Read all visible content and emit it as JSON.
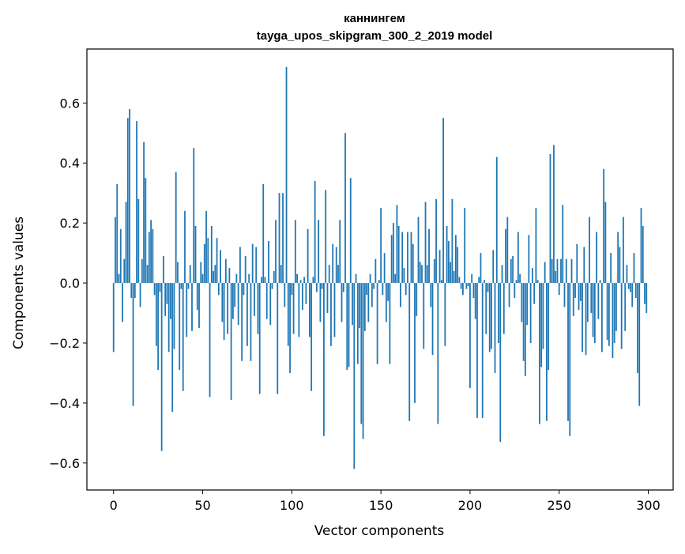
{
  "chart_data": {
    "type": "bar",
    "title": "каннингем",
    "subtitle": "tayga_upos_skipgram_300_2_2019 model",
    "xlabel": "Vector components",
    "ylabel": "Components values",
    "xlim": [
      -14.95,
      313.95
    ],
    "ylim": [
      -0.69,
      0.78
    ],
    "xticks": [
      0,
      50,
      100,
      150,
      200,
      250,
      300
    ],
    "xtick_labels": [
      "0",
      "50",
      "100",
      "150",
      "200",
      "250",
      "300"
    ],
    "yticks": [
      -0.6,
      -0.4,
      -0.2,
      0.0,
      0.2,
      0.4,
      0.6
    ],
    "ytick_labels": [
      "−0.6",
      "−0.4",
      "−0.2",
      "0.0",
      "0.2",
      "0.4",
      "0.6"
    ],
    "grid": false,
    "bar_color": "#1f77b4",
    "values": [
      -0.23,
      0.22,
      0.33,
      0.03,
      0.18,
      -0.13,
      0.08,
      0.27,
      0.55,
      0.58,
      -0.05,
      -0.41,
      -0.05,
      0.54,
      0.28,
      -0.08,
      0.08,
      0.47,
      0.35,
      0.06,
      0.17,
      0.21,
      0.18,
      -0.04,
      -0.21,
      -0.29,
      -0.03,
      -0.56,
      0.09,
      -0.11,
      -0.07,
      -0.23,
      -0.12,
      -0.43,
      -0.22,
      0.37,
      0.07,
      -0.29,
      -0.02,
      -0.36,
      0.24,
      -0.18,
      -0.02,
      0.06,
      -0.16,
      0.45,
      0.19,
      -0.09,
      -0.15,
      0.07,
      0.03,
      0.13,
      0.24,
      0.15,
      -0.38,
      0.19,
      0.04,
      0.06,
      0.15,
      -0.04,
      0.11,
      -0.13,
      -0.19,
      0.08,
      -0.17,
      0.05,
      -0.39,
      -0.12,
      -0.08,
      0.03,
      -0.14,
      0.12,
      -0.26,
      -0.04,
      0.09,
      -0.21,
      0.03,
      -0.26,
      0.13,
      -0.11,
      0.12,
      -0.17,
      -0.37,
      0.02,
      0.33,
      0.02,
      -0.12,
      0.14,
      -0.14,
      -0.02,
      0.04,
      0.21,
      -0.37,
      0.3,
      0.06,
      0.3,
      -0.08,
      0.72,
      -0.21,
      -0.3,
      -0.04,
      -0.17,
      0.21,
      0.03,
      -0.18,
      0.01,
      -0.09,
      0.02,
      -0.07,
      0.18,
      -0.18,
      -0.36,
      0.02,
      0.34,
      -0.03,
      0.21,
      -0.13,
      -0.02,
      -0.51,
      0.31,
      -0.1,
      0.06,
      -0.21,
      0.13,
      -0.18,
      0.12,
      0.06,
      0.21,
      -0.13,
      -0.03,
      0.5,
      -0.29,
      -0.28,
      0.35,
      -0.14,
      -0.62,
      0.03,
      -0.27,
      -0.15,
      -0.47,
      -0.52,
      -0.16,
      -0.04,
      -0.13,
      0.03,
      -0.08,
      -0.02,
      0.08,
      -0.27,
      0.01,
      0.25,
      -0.04,
      0.1,
      -0.13,
      -0.06,
      -0.27,
      0.16,
      0.2,
      0.03,
      0.26,
      0.19,
      -0.08,
      0.17,
      0.05,
      -0.04,
      0.17,
      -0.46,
      0.17,
      0.13,
      -0.4,
      -0.11,
      0.22,
      0.07,
      0.06,
      -0.22,
      0.27,
      0.06,
      0.18,
      -0.08,
      -0.24,
      0.08,
      0.28,
      -0.47,
      0.11,
      0.01,
      0.55,
      -0.21,
      0.19,
      0.14,
      0.07,
      0.28,
      0.04,
      0.16,
      0.12,
      0.02,
      -0.02,
      -0.04,
      0.25,
      -0.02,
      -0.01,
      -0.35,
      0.03,
      -0.05,
      -0.12,
      -0.45,
      0.02,
      0.1,
      -0.45,
      0.01,
      -0.17,
      -0.03,
      -0.23,
      -0.22,
      0.11,
      -0.3,
      0.42,
      -0.2,
      -0.53,
      0.06,
      -0.17,
      0.18,
      0.22,
      -0.08,
      0.08,
      0.09,
      -0.05,
      0.01,
      0.17,
      0.03,
      -0.13,
      -0.26,
      -0.31,
      -0.14,
      0.16,
      -0.2,
      0.05,
      -0.07,
      0.25,
      0.01,
      -0.47,
      -0.28,
      -0.22,
      0.07,
      -0.46,
      -0.29,
      0.43,
      0.08,
      0.46,
      0.04,
      0.08,
      -0.04,
      0.08,
      0.26,
      -0.08,
      0.08,
      -0.46,
      -0.51,
      0.08,
      -0.11,
      -0.05,
      0.13,
      -0.09,
      -0.06,
      -0.23,
      0.12,
      -0.24,
      -0.13,
      0.22,
      -0.1,
      -0.18,
      -0.2,
      0.17,
      -0.12,
      0.01,
      -0.23,
      0.38,
      0.27,
      -0.19,
      -0.21,
      0.1,
      -0.25,
      -0.2,
      -0.16,
      0.17,
      0.12,
      -0.22,
      0.22,
      -0.16,
      0.06,
      -0.02,
      -0.03,
      -0.08,
      0.1,
      -0.05,
      -0.3,
      -0.41,
      0.25,
      0.19,
      -0.07,
      -0.1
    ]
  }
}
